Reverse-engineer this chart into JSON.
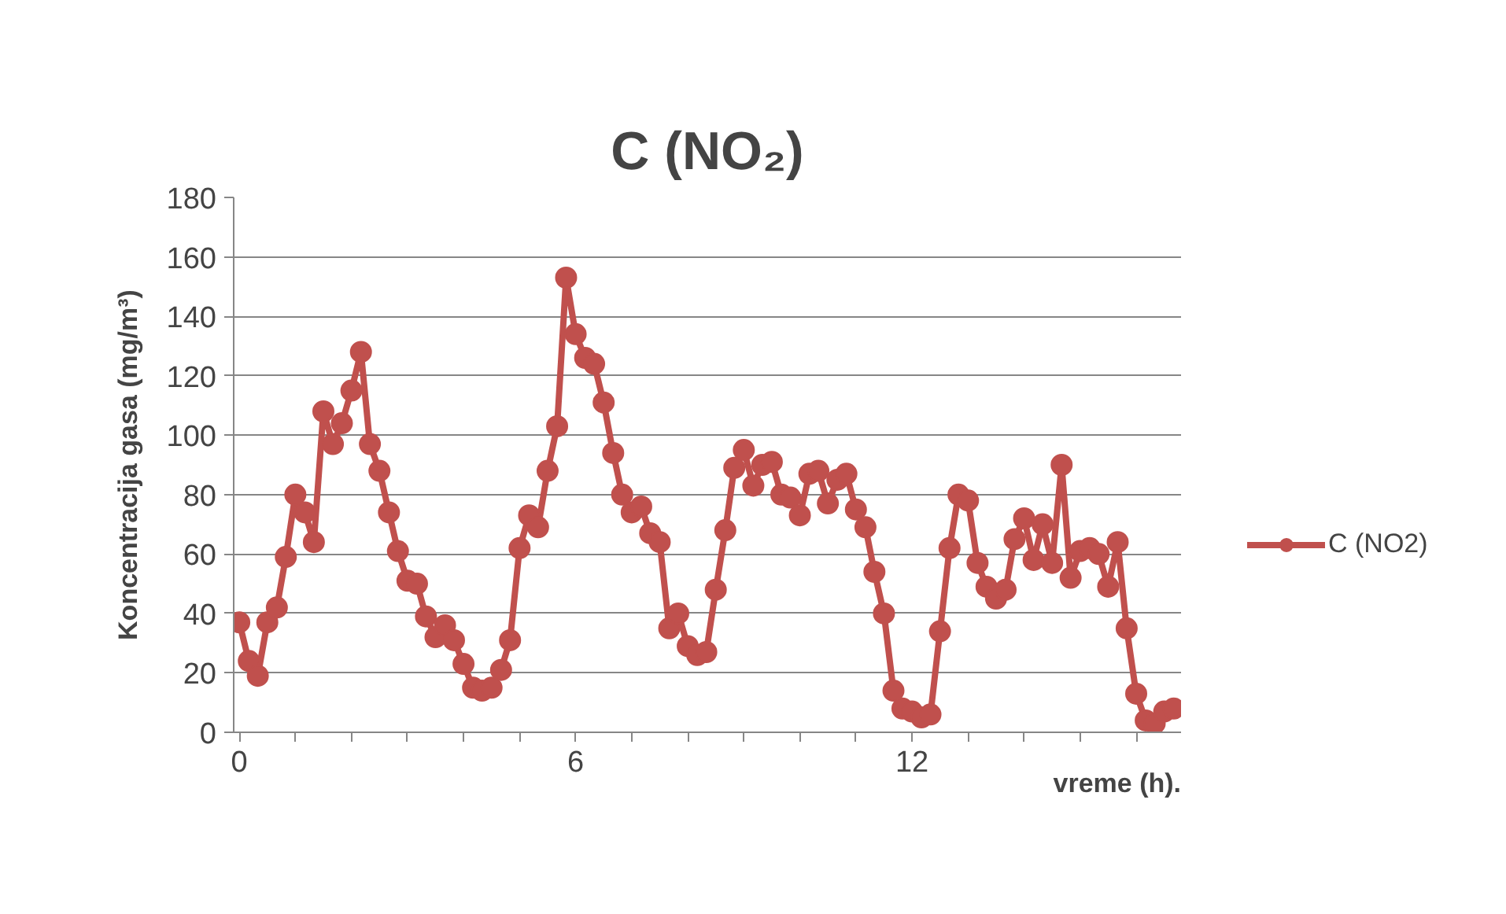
{
  "chart_data": {
    "type": "line",
    "title": "C (NO₂)",
    "xlabel": "vreme (h).",
    "ylabel": "Koncentracija gasa (mg/m³)",
    "x": [
      0,
      0.17,
      0.33,
      0.5,
      0.67,
      0.83,
      1,
      1.17,
      1.33,
      1.5,
      1.67,
      1.83,
      2,
      2.17,
      2.33,
      2.5,
      2.67,
      2.83,
      3,
      3.17,
      3.33,
      3.5,
      3.67,
      3.83,
      4,
      4.17,
      4.33,
      4.5,
      4.67,
      4.83,
      5,
      5.17,
      5.33,
      5.5,
      5.67,
      5.83,
      6,
      6.17,
      6.33,
      6.5,
      6.67,
      6.83,
      7,
      7.17,
      7.33,
      7.5,
      7.67,
      7.83,
      8,
      8.17,
      8.33,
      8.5,
      8.67,
      8.83,
      9,
      9.17,
      9.33,
      9.5,
      9.67,
      9.83,
      10,
      10.17,
      10.33,
      10.5,
      10.67,
      10.83,
      11,
      11.17,
      11.33,
      11.5,
      11.67,
      11.83,
      12,
      12.17,
      12.33,
      12.5,
      12.67,
      12.83,
      13,
      13.17,
      13.33,
      13.5,
      13.67,
      13.83,
      14,
      14.17,
      14.33,
      14.5,
      14.67,
      14.83,
      15,
      15.17,
      15.33,
      15.5,
      15.67,
      15.83,
      16,
      16.17,
      16.33,
      16.5,
      16.67
    ],
    "series": [
      {
        "name": "C (NO2)",
        "color": "#c0504d",
        "values": [
          37,
          24,
          19,
          37,
          42,
          59,
          80,
          74,
          64,
          108,
          97,
          104,
          115,
          128,
          97,
          88,
          74,
          61,
          51,
          50,
          39,
          32,
          36,
          31,
          23,
          15,
          14,
          15,
          21,
          31,
          62,
          73,
          69,
          88,
          103,
          153,
          134,
          126,
          124,
          111,
          94,
          80,
          74,
          76,
          67,
          64,
          35,
          40,
          29,
          26,
          27,
          48,
          68,
          89,
          95,
          83,
          90,
          91,
          80,
          79,
          73,
          87,
          88,
          77,
          85,
          87,
          75,
          69,
          54,
          40,
          14,
          8,
          7,
          5,
          6,
          34,
          62,
          80,
          78,
          57,
          49,
          45,
          48,
          65,
          72,
          58,
          70,
          57,
          90,
          52,
          61,
          62,
          60,
          49,
          64,
          35,
          13,
          4,
          3,
          7,
          8
        ]
      }
    ],
    "xlim": [
      -0.1,
      16.8
    ],
    "ylim": [
      0,
      180
    ],
    "xticks": [
      0,
      {
        "value": 1,
        "label": null
      },
      {
        "value": 2,
        "label": null
      },
      {
        "value": 3,
        "label": null
      },
      {
        "value": 4,
        "label": null
      },
      {
        "value": 5,
        "label": null
      },
      6,
      {
        "value": 7,
        "label": null
      },
      {
        "value": 8,
        "label": null
      },
      {
        "value": 9,
        "label": null
      },
      {
        "value": 10,
        "label": null
      },
      {
        "value": 11,
        "label": null
      },
      12,
      {
        "value": 13,
        "label": null
      },
      {
        "value": 14,
        "label": null
      },
      {
        "value": 15,
        "label": null
      },
      {
        "value": 16,
        "label": null
      }
    ],
    "yticks": [
      0,
      20,
      40,
      60,
      80,
      100,
      120,
      140,
      160,
      180
    ],
    "grid": "y",
    "legend": "right",
    "marker": "circle",
    "line_style": "solid"
  }
}
